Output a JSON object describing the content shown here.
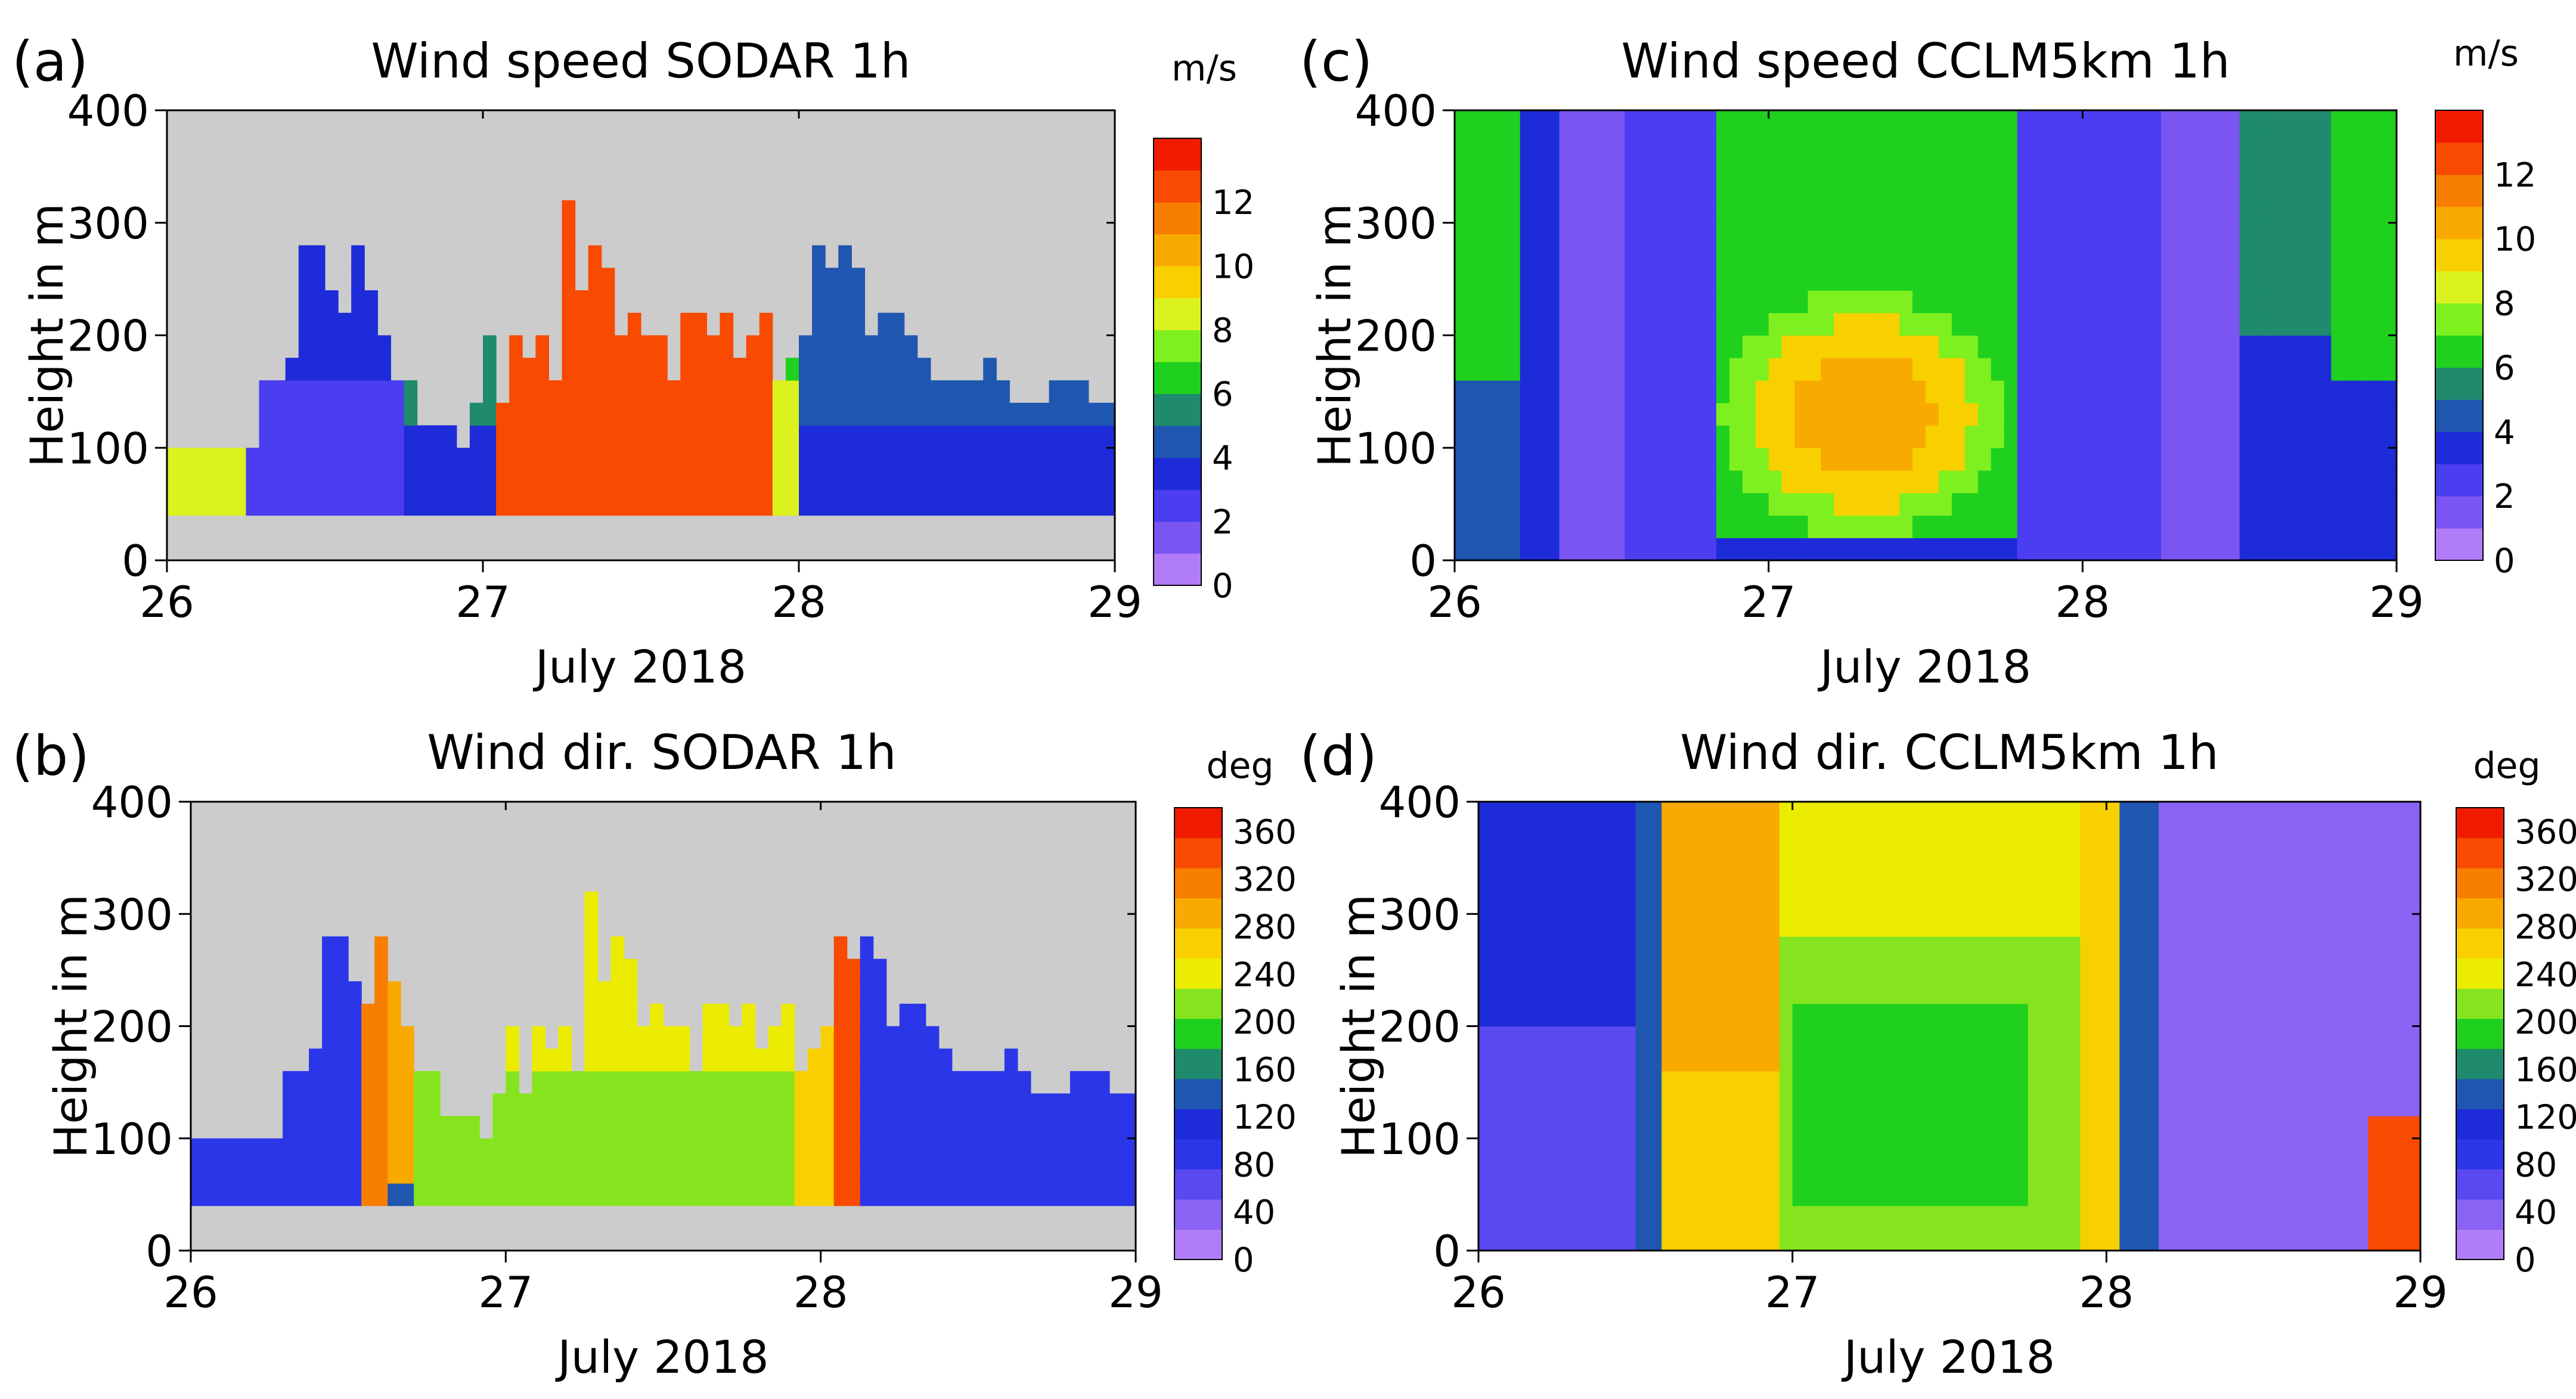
{
  "figure": {
    "caption_hidden": ""
  },
  "colors": {
    "speed_scale": [
      "#b07cf8",
      "#7a55f2",
      "#4a3ef0",
      "#1d2bd8",
      "#1f56b0",
      "#1f8a6c",
      "#1fd01f",
      "#7ef01f",
      "#dcf21f",
      "#f8d000",
      "#f8aa00",
      "#f87e00",
      "#f84a00",
      "#f11c00"
    ],
    "dir_scale": [
      "#b07cf8",
      "#8a62f4",
      "#5a48f0",
      "#2b36e8",
      "#1d2bd8",
      "#1f56b0",
      "#1f8a6c",
      "#1fd01f",
      "#86e41f",
      "#ecec00",
      "#f8d000",
      "#f8aa00",
      "#f87e00",
      "#f84a00",
      "#f11c00"
    ],
    "nodata": "#cccccc"
  },
  "chart_data": [
    {
      "id": "a",
      "type": "heatmap",
      "panel_label": "(a)",
      "title": "Wind speed SODAR 1h",
      "xlabel": "July 2018",
      "ylabel": "Height in m",
      "xlim": [
        26,
        29
      ],
      "ylim": [
        0,
        400
      ],
      "xticks": [
        "26",
        "27",
        "28",
        "29"
      ],
      "yticks": [
        "0",
        "100",
        "200",
        "300",
        "400"
      ],
      "colorbar": {
        "unit": "m/s",
        "min": 0,
        "max": 14,
        "ticks": [
          "0",
          "2",
          "4",
          "6",
          "8",
          "10",
          "12"
        ]
      },
      "source": "sodar",
      "variable": "speed",
      "max_height_m": [
        95,
        95,
        95,
        95,
        95,
        95,
        95,
        150,
        160,
        180,
        270,
        280,
        230,
        220,
        270,
        240,
        190,
        160,
        150,
        120,
        120,
        120,
        100,
        140,
        190,
        130,
        190,
        180,
        190,
        160,
        310,
        240,
        270,
        250,
        190,
        210,
        200,
        200,
        160,
        220,
        210,
        200,
        210,
        180,
        190,
        210,
        160,
        170,
        190,
        270,
        260,
        270,
        265,
        200,
        210,
        210,
        200,
        180,
        160,
        160,
        160,
        160,
        170,
        160,
        140,
        130,
        130,
        160,
        150,
        150,
        140,
        130,
        130
      ]
    },
    {
      "id": "b",
      "type": "heatmap",
      "panel_label": "(b)",
      "title": "Wind dir. SODAR 1h",
      "xlabel": "July 2018",
      "ylabel": "Height in m",
      "xlim": [
        26,
        29
      ],
      "ylim": [
        0,
        400
      ],
      "xticks": [
        "26",
        "27",
        "28",
        "29"
      ],
      "yticks": [
        "0",
        "100",
        "200",
        "300",
        "400"
      ],
      "colorbar": {
        "unit": "deg",
        "min": 0,
        "max": 380,
        "ticks": [
          "0",
          "40",
          "80",
          "120",
          "160",
          "200",
          "240",
          "280",
          "320",
          "360"
        ]
      },
      "source": "sodar",
      "variable": "direction",
      "max_height_m": [
        95,
        95,
        95,
        95,
        95,
        95,
        95,
        150,
        160,
        180,
        270,
        280,
        230,
        220,
        270,
        240,
        190,
        160,
        150,
        120,
        120,
        120,
        100,
        140,
        190,
        130,
        190,
        180,
        190,
        160,
        310,
        240,
        270,
        250,
        190,
        210,
        200,
        200,
        160,
        220,
        210,
        200,
        210,
        180,
        190,
        210,
        160,
        170,
        190,
        270,
        260,
        270,
        265,
        200,
        210,
        210,
        200,
        180,
        160,
        160,
        160,
        160,
        170,
        160,
        140,
        130,
        130,
        160,
        150,
        150,
        140,
        130,
        130
      ]
    },
    {
      "id": "c",
      "type": "heatmap",
      "panel_label": "(c)",
      "title": "Wind speed CCLM5km 1h",
      "xlabel": "July 2018",
      "ylabel": "Height in m",
      "xlim": [
        26,
        29
      ],
      "ylim": [
        0,
        400
      ],
      "xticks": [
        "26",
        "27",
        "28",
        "29"
      ],
      "yticks": [
        "0",
        "100",
        "200",
        "300",
        "400"
      ],
      "colorbar": {
        "unit": "m/s",
        "min": 0,
        "max": 14,
        "ticks": [
          "0",
          "2",
          "4",
          "6",
          "8",
          "10",
          "12"
        ]
      },
      "source": "model",
      "variable": "speed"
    },
    {
      "id": "d",
      "type": "heatmap",
      "panel_label": "(d)",
      "title": "Wind dir. CCLM5km 1h",
      "xlabel": "July 2018",
      "ylabel": "Height in m",
      "xlim": [
        26,
        29
      ],
      "ylim": [
        0,
        400
      ],
      "xticks": [
        "26",
        "27",
        "28",
        "29"
      ],
      "yticks": [
        "0",
        "100",
        "200",
        "300",
        "400"
      ],
      "colorbar": {
        "unit": "deg",
        "min": 0,
        "max": 380,
        "ticks": [
          "0",
          "40",
          "80",
          "120",
          "160",
          "200",
          "240",
          "280",
          "320",
          "360"
        ]
      },
      "source": "model",
      "variable": "direction"
    }
  ]
}
